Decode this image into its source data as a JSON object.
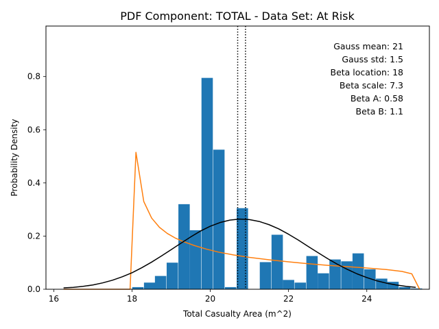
{
  "chart_data": {
    "type": "bar",
    "title": "PDF Component: TOTAL - Data Set: At Risk",
    "xlabel": "Total Casualty Area (m^2)",
    "ylabel": "Probability Density",
    "xlim": [
      15.8,
      25.6
    ],
    "ylim": [
      0,
      0.99
    ],
    "xticks": [
      16,
      18,
      20,
      22,
      24
    ],
    "yticks": [
      0.0,
      0.2,
      0.4,
      0.6,
      0.8
    ],
    "grid": false,
    "histogram": {
      "color": "#1f77b4",
      "bin_width": 0.29,
      "x": [
        18.15,
        18.45,
        18.73,
        19.03,
        19.33,
        19.62,
        19.92,
        20.22,
        20.52,
        20.82,
        21.11,
        21.41,
        21.71,
        22.0,
        22.3,
        22.6,
        22.89,
        23.19,
        23.49,
        23.78,
        24.08,
        24.38,
        24.67,
        24.97,
        25.27
      ],
      "values": [
        0.008,
        0.025,
        0.05,
        0.1,
        0.32,
        0.222,
        0.795,
        0.525,
        0.008,
        0.305,
        0.0,
        0.102,
        0.205,
        0.035,
        0.025,
        0.125,
        0.06,
        0.112,
        0.105,
        0.135,
        0.075,
        0.04,
        0.028,
        0.008,
        0.003
      ]
    },
    "gauss_curve": {
      "color": "#000000",
      "x": [
        16.25,
        16.5,
        16.75,
        17.0,
        17.25,
        17.5,
        17.75,
        18.0,
        18.25,
        18.5,
        18.75,
        19.0,
        19.25,
        19.5,
        19.75,
        20.0,
        20.25,
        20.5,
        20.75,
        21.0,
        21.25,
        21.5,
        21.75,
        22.0,
        22.25,
        22.5,
        22.75,
        23.0,
        23.25,
        23.5,
        23.75,
        24.0,
        24.25,
        24.5,
        24.75,
        25.0,
        25.25
      ],
      "values": [
        0.005,
        0.007,
        0.011,
        0.016,
        0.024,
        0.034,
        0.047,
        0.062,
        0.081,
        0.102,
        0.125,
        0.149,
        0.173,
        0.197,
        0.219,
        0.237,
        0.251,
        0.26,
        0.264,
        0.262,
        0.255,
        0.243,
        0.227,
        0.207,
        0.185,
        0.161,
        0.138,
        0.115,
        0.094,
        0.075,
        0.058,
        0.044,
        0.032,
        0.023,
        0.016,
        0.011,
        0.007
      ]
    },
    "beta_curve": {
      "color": "#ff7f0e",
      "x": [
        16.25,
        17.95,
        18.1,
        18.3,
        18.5,
        18.7,
        18.9,
        19.1,
        19.3,
        19.6,
        19.9,
        20.2,
        20.6,
        21.0,
        21.5,
        22.0,
        22.5,
        23.0,
        23.5,
        24.0,
        24.5,
        24.9,
        25.15,
        25.35
      ],
      "values": [
        0.0,
        0.0,
        0.515,
        0.33,
        0.268,
        0.233,
        0.21,
        0.193,
        0.18,
        0.164,
        0.151,
        0.14,
        0.129,
        0.12,
        0.111,
        0.103,
        0.096,
        0.09,
        0.085,
        0.08,
        0.074,
        0.067,
        0.058,
        0.0
      ]
    },
    "vlines": {
      "style": "dotted",
      "color": "#000000",
      "x": [
        20.7,
        20.9
      ]
    },
    "annotations": [
      "Gauss mean: 21",
      "Gauss std: 1.5",
      "Beta location: 18",
      "Beta scale: 7.3",
      "Beta A: 0.58",
      "Beta B: 1.1"
    ]
  }
}
